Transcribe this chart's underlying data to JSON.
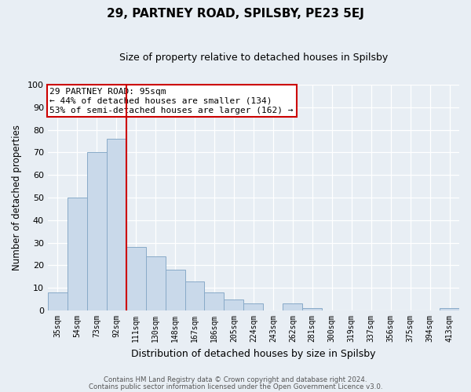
{
  "title": "29, PARTNEY ROAD, SPILSBY, PE23 5EJ",
  "subtitle": "Size of property relative to detached houses in Spilsby",
  "xlabel": "Distribution of detached houses by size in Spilsby",
  "ylabel": "Number of detached properties",
  "bar_color": "#c9d9ea",
  "bar_edge_color": "#88aac8",
  "background_color": "#e8eef4",
  "grid_color": "#ffffff",
  "bin_labels": [
    "35sqm",
    "54sqm",
    "73sqm",
    "92sqm",
    "111sqm",
    "130sqm",
    "148sqm",
    "167sqm",
    "186sqm",
    "205sqm",
    "224sqm",
    "243sqm",
    "262sqm",
    "281sqm",
    "300sqm",
    "319sqm",
    "337sqm",
    "356sqm",
    "375sqm",
    "394sqm",
    "413sqm"
  ],
  "bar_values": [
    8,
    50,
    70,
    76,
    28,
    24,
    18,
    13,
    8,
    5,
    3,
    0,
    3,
    1,
    0,
    0,
    0,
    0,
    0,
    0,
    1
  ],
  "ylim": [
    0,
    100
  ],
  "yticks": [
    0,
    10,
    20,
    30,
    40,
    50,
    60,
    70,
    80,
    90,
    100
  ],
  "vline_index": 3.5,
  "vline_color": "#cc0000",
  "annotation_title": "29 PARTNEY ROAD: 95sqm",
  "annotation_line1": "← 44% of detached houses are smaller (134)",
  "annotation_line2": "53% of semi-detached houses are larger (162) →",
  "annotation_box_color": "#ffffff",
  "annotation_box_edge": "#cc0000",
  "footer1": "Contains HM Land Registry data © Crown copyright and database right 2024.",
  "footer2": "Contains public sector information licensed under the Open Government Licence v3.0."
}
